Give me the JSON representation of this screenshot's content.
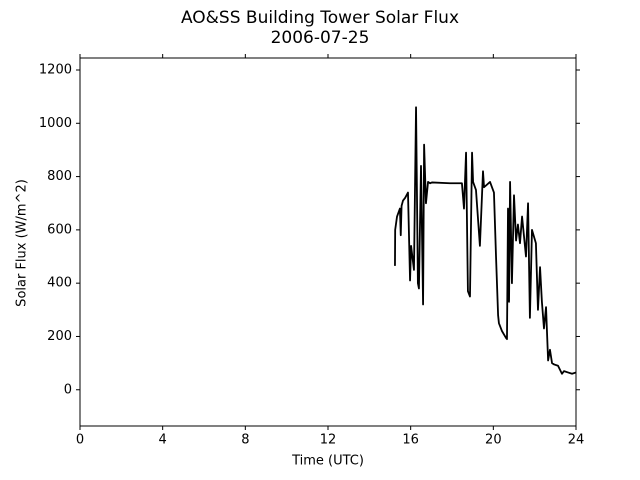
{
  "chart_data": {
    "type": "line",
    "title": "AO&SS Building Tower Solar Flux",
    "subtitle": "2006-07-25",
    "x_label": "Time (UTC)",
    "y_label": "Solar Flux (W/m^2)",
    "xlim": [
      0,
      24
    ],
    "xticks": [
      0,
      4,
      8,
      12,
      16,
      20,
      24
    ],
    "ylim": [
      -136,
      1245
    ],
    "yticks": [
      0,
      200,
      400,
      600,
      800,
      1000,
      1200
    ],
    "grid": false,
    "series": [
      {
        "name": "Solar Flux",
        "color": "#000000",
        "x": [
          15.24,
          15.25,
          15.34,
          15.48,
          15.52,
          15.56,
          15.63,
          15.73,
          15.87,
          15.97,
          16.02,
          16.16,
          16.26,
          16.35,
          16.4,
          16.5,
          16.6,
          16.65,
          16.74,
          16.84,
          16.94,
          17.03,
          17.9,
          18.48,
          18.58,
          18.68,
          18.77,
          18.87,
          18.97,
          19.02,
          19.16,
          19.35,
          19.5,
          19.55,
          19.84,
          20.03,
          20.13,
          20.23,
          20.27,
          20.42,
          20.61,
          20.66,
          20.71,
          20.76,
          20.81,
          20.9,
          21.0,
          21.1,
          21.19,
          21.29,
          21.39,
          21.58,
          21.68,
          21.77,
          21.87,
          22.06,
          22.16,
          22.26,
          22.35,
          22.45,
          22.55,
          22.65,
          22.74,
          22.84,
          22.94,
          23.13,
          23.32,
          23.42,
          23.61,
          23.81,
          24.0
        ],
        "values": [
          465,
          600,
          650,
          680,
          580,
          690,
          710,
          720,
          740,
          410,
          540,
          450,
          1060,
          400,
          380,
          840,
          320,
          920,
          700,
          780,
          775,
          778,
          775,
          775,
          680,
          890,
          370,
          350,
          890,
          780,
          750,
          540,
          820,
          760,
          780,
          740,
          500,
          280,
          250,
          220,
          195,
          190,
          680,
          330,
          780,
          400,
          730,
          560,
          620,
          550,
          650,
          500,
          700,
          270,
          600,
          550,
          300,
          460,
          330,
          230,
          310,
          110,
          150,
          100,
          95,
          90,
          60,
          70,
          65,
          60,
          65
        ]
      }
    ]
  }
}
